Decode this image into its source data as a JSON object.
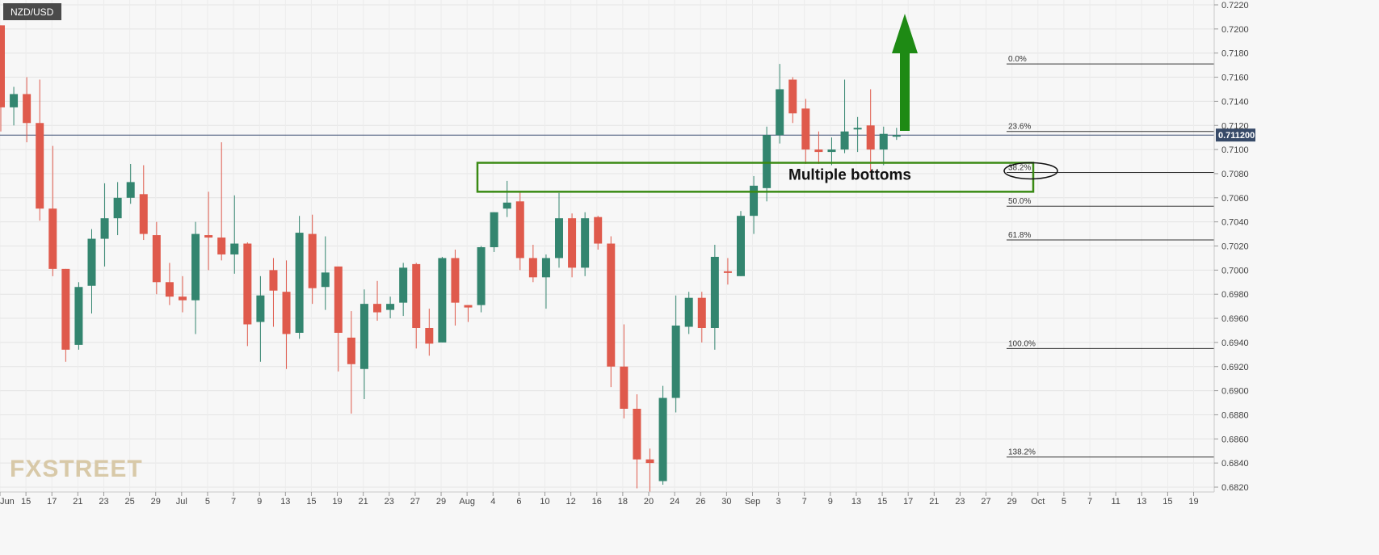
{
  "chart_data": {
    "type": "candlestick",
    "title": "NZD/USD",
    "watermark": "FXSTREET",
    "ylim": [
      0.681,
      0.7225
    ],
    "y_ticks": [
      "0.7220",
      "0.7200",
      "0.7180",
      "0.7160",
      "0.7140",
      "0.7120",
      "0.7100",
      "0.7080",
      "0.7060",
      "0.7040",
      "0.7020",
      "0.7000",
      "0.6980",
      "0.6960",
      "0.6940",
      "0.6920",
      "0.6900",
      "0.6880",
      "0.6860",
      "0.6840",
      "0.6820"
    ],
    "x_ticks": [
      "Jun",
      "15",
      "17",
      "21",
      "23",
      "25",
      "29",
      "Jul",
      "5",
      "7",
      "9",
      "13",
      "15",
      "19",
      "21",
      "23",
      "27",
      "29",
      "Aug",
      "4",
      "6",
      "10",
      "12",
      "16",
      "18",
      "20",
      "24",
      "26",
      "30",
      "Sep",
      "3",
      "7",
      "9",
      "13",
      "15",
      "17",
      "21",
      "23",
      "27",
      "29",
      "Oct",
      "5",
      "7",
      "11",
      "13",
      "15",
      "19"
    ],
    "current_price": "0.711200",
    "current_price_value": 0.7112,
    "candles": [
      {
        "o": 0.7203,
        "h": 0.7203,
        "l": 0.7115,
        "c": 0.7135
      },
      {
        "o": 0.7135,
        "h": 0.7152,
        "l": 0.712,
        "c": 0.7146
      },
      {
        "o": 0.7146,
        "h": 0.716,
        "l": 0.7106,
        "c": 0.7122
      },
      {
        "o": 0.7122,
        "h": 0.7158,
        "l": 0.7041,
        "c": 0.7051
      },
      {
        "o": 0.7051,
        "h": 0.7103,
        "l": 0.6995,
        "c": 0.7001
      },
      {
        "o": 0.7001,
        "h": 0.7001,
        "l": 0.6924,
        "c": 0.6934
      },
      {
        "o": 0.6938,
        "h": 0.699,
        "l": 0.6934,
        "c": 0.6986
      },
      {
        "o": 0.6987,
        "h": 0.7034,
        "l": 0.6964,
        "c": 0.7026
      },
      {
        "o": 0.7026,
        "h": 0.7072,
        "l": 0.7003,
        "c": 0.7043
      },
      {
        "o": 0.7043,
        "h": 0.7073,
        "l": 0.7029,
        "c": 0.706
      },
      {
        "o": 0.706,
        "h": 0.7088,
        "l": 0.7055,
        "c": 0.7073
      },
      {
        "o": 0.7063,
        "h": 0.7087,
        "l": 0.7025,
        "c": 0.703
      },
      {
        "o": 0.7029,
        "h": 0.704,
        "l": 0.698,
        "c": 0.699
      },
      {
        "o": 0.699,
        "h": 0.7006,
        "l": 0.6971,
        "c": 0.6978
      },
      {
        "o": 0.6978,
        "h": 0.6995,
        "l": 0.6965,
        "c": 0.6975
      },
      {
        "o": 0.6975,
        "h": 0.704,
        "l": 0.6947,
        "c": 0.703
      },
      {
        "o": 0.7029,
        "h": 0.7065,
        "l": 0.7,
        "c": 0.7027
      },
      {
        "o": 0.7027,
        "h": 0.7106,
        "l": 0.7008,
        "c": 0.7013
      },
      {
        "o": 0.7013,
        "h": 0.7062,
        "l": 0.6997,
        "c": 0.7022
      },
      {
        "o": 0.7022,
        "h": 0.7023,
        "l": 0.6937,
        "c": 0.6955
      },
      {
        "o": 0.6957,
        "h": 0.6995,
        "l": 0.6924,
        "c": 0.6979
      },
      {
        "o": 0.7,
        "h": 0.701,
        "l": 0.6953,
        "c": 0.6983
      },
      {
        "o": 0.6982,
        "h": 0.7008,
        "l": 0.6918,
        "c": 0.6947
      },
      {
        "o": 0.6948,
        "h": 0.7045,
        "l": 0.6943,
        "c": 0.7031
      },
      {
        "o": 0.703,
        "h": 0.7046,
        "l": 0.6972,
        "c": 0.6985
      },
      {
        "o": 0.6986,
        "h": 0.7028,
        "l": 0.6967,
        "c": 0.6998
      },
      {
        "o": 0.7003,
        "h": 0.7003,
        "l": 0.6916,
        "c": 0.6948
      },
      {
        "o": 0.6944,
        "h": 0.6966,
        "l": 0.6881,
        "c": 0.6922
      },
      {
        "o": 0.6918,
        "h": 0.6984,
        "l": 0.6893,
        "c": 0.6972
      },
      {
        "o": 0.6972,
        "h": 0.6991,
        "l": 0.6958,
        "c": 0.6965
      },
      {
        "o": 0.6967,
        "h": 0.6978,
        "l": 0.696,
        "c": 0.6972
      },
      {
        "o": 0.6973,
        "h": 0.7006,
        "l": 0.6962,
        "c": 0.7002
      },
      {
        "o": 0.7005,
        "h": 0.7006,
        "l": 0.6935,
        "c": 0.6952
      },
      {
        "o": 0.6952,
        "h": 0.6968,
        "l": 0.6929,
        "c": 0.6939
      },
      {
        "o": 0.694,
        "h": 0.7011,
        "l": 0.694,
        "c": 0.701
      },
      {
        "o": 0.701,
        "h": 0.7017,
        "l": 0.6954,
        "c": 0.6973
      },
      {
        "o": 0.6971,
        "h": 0.6971,
        "l": 0.6957,
        "c": 0.6969
      },
      {
        "o": 0.6971,
        "h": 0.702,
        "l": 0.6965,
        "c": 0.7019
      },
      {
        "o": 0.7019,
        "h": 0.7048,
        "l": 0.7015,
        "c": 0.7048
      },
      {
        "o": 0.7051,
        "h": 0.7074,
        "l": 0.7044,
        "c": 0.7056
      },
      {
        "o": 0.7057,
        "h": 0.7065,
        "l": 0.7,
        "c": 0.701
      },
      {
        "o": 0.701,
        "h": 0.7021,
        "l": 0.699,
        "c": 0.6994
      },
      {
        "o": 0.6994,
        "h": 0.7013,
        "l": 0.6968,
        "c": 0.701
      },
      {
        "o": 0.701,
        "h": 0.7064,
        "l": 0.7002,
        "c": 0.7043
      },
      {
        "o": 0.7043,
        "h": 0.7047,
        "l": 0.6994,
        "c": 0.7002
      },
      {
        "o": 0.7002,
        "h": 0.7048,
        "l": 0.6995,
        "c": 0.7043
      },
      {
        "o": 0.7044,
        "h": 0.7045,
        "l": 0.7017,
        "c": 0.7022
      },
      {
        "o": 0.7022,
        "h": 0.7028,
        "l": 0.6903,
        "c": 0.692
      },
      {
        "o": 0.692,
        "h": 0.6955,
        "l": 0.6877,
        "c": 0.6885
      },
      {
        "o": 0.6885,
        "h": 0.6897,
        "l": 0.6819,
        "c": 0.6843
      },
      {
        "o": 0.6843,
        "h": 0.6852,
        "l": 0.6816,
        "c": 0.684
      },
      {
        "o": 0.6825,
        "h": 0.6904,
        "l": 0.6822,
        "c": 0.6894
      },
      {
        "o": 0.6894,
        "h": 0.6979,
        "l": 0.6882,
        "c": 0.6954
      },
      {
        "o": 0.6953,
        "h": 0.6982,
        "l": 0.6947,
        "c": 0.6977
      },
      {
        "o": 0.6977,
        "h": 0.6982,
        "l": 0.694,
        "c": 0.6952
      },
      {
        "o": 0.6952,
        "h": 0.7021,
        "l": 0.6934,
        "c": 0.7011
      },
      {
        "o": 0.6999,
        "h": 0.701,
        "l": 0.6988,
        "c": 0.6998
      },
      {
        "o": 0.6995,
        "h": 0.7049,
        "l": 0.6995,
        "c": 0.7045
      },
      {
        "o": 0.7045,
        "h": 0.7078,
        "l": 0.703,
        "c": 0.707
      },
      {
        "o": 0.7068,
        "h": 0.7119,
        "l": 0.7057,
        "c": 0.7112
      },
      {
        "o": 0.7112,
        "h": 0.7171,
        "l": 0.7105,
        "c": 0.715
      },
      {
        "o": 0.7158,
        "h": 0.716,
        "l": 0.7122,
        "c": 0.713
      },
      {
        "o": 0.7134,
        "h": 0.7142,
        "l": 0.7088,
        "c": 0.71
      },
      {
        "o": 0.71,
        "h": 0.7115,
        "l": 0.7088,
        "c": 0.7098
      },
      {
        "o": 0.7098,
        "h": 0.711,
        "l": 0.7087,
        "c": 0.71
      },
      {
        "o": 0.71,
        "h": 0.7158,
        "l": 0.7097,
        "c": 0.7115
      },
      {
        "o": 0.7118,
        "h": 0.7127,
        "l": 0.7098,
        "c": 0.7118
      },
      {
        "o": 0.712,
        "h": 0.715,
        "l": 0.7082,
        "c": 0.71
      },
      {
        "o": 0.71,
        "h": 0.7119,
        "l": 0.7087,
        "c": 0.7113
      },
      {
        "o": 0.7111,
        "h": 0.7118,
        "l": 0.7108,
        "c": 0.7112
      }
    ],
    "fib_levels": [
      {
        "label": "0.0%",
        "value": 0.7171
      },
      {
        "label": "23.6%",
        "value": 0.7115
      },
      {
        "label": "38.2%",
        "value": 0.7081
      },
      {
        "label": "50.0%",
        "value": 0.7053
      },
      {
        "label": "61.8%",
        "value": 0.7025
      },
      {
        "label": "100.0%",
        "value": 0.6935
      },
      {
        "label": "138.2%",
        "value": 0.6845
      }
    ],
    "zone": {
      "label": "Multiple bottoms",
      "top": 0.7089,
      "bottom": 0.7065
    },
    "arrow_direction": "up",
    "colors": {
      "up": "#33856f",
      "down": "#df5a4c",
      "zone": "#3a8a14",
      "arrow": "#1e8a14",
      "price_tag": "#374a68"
    }
  }
}
